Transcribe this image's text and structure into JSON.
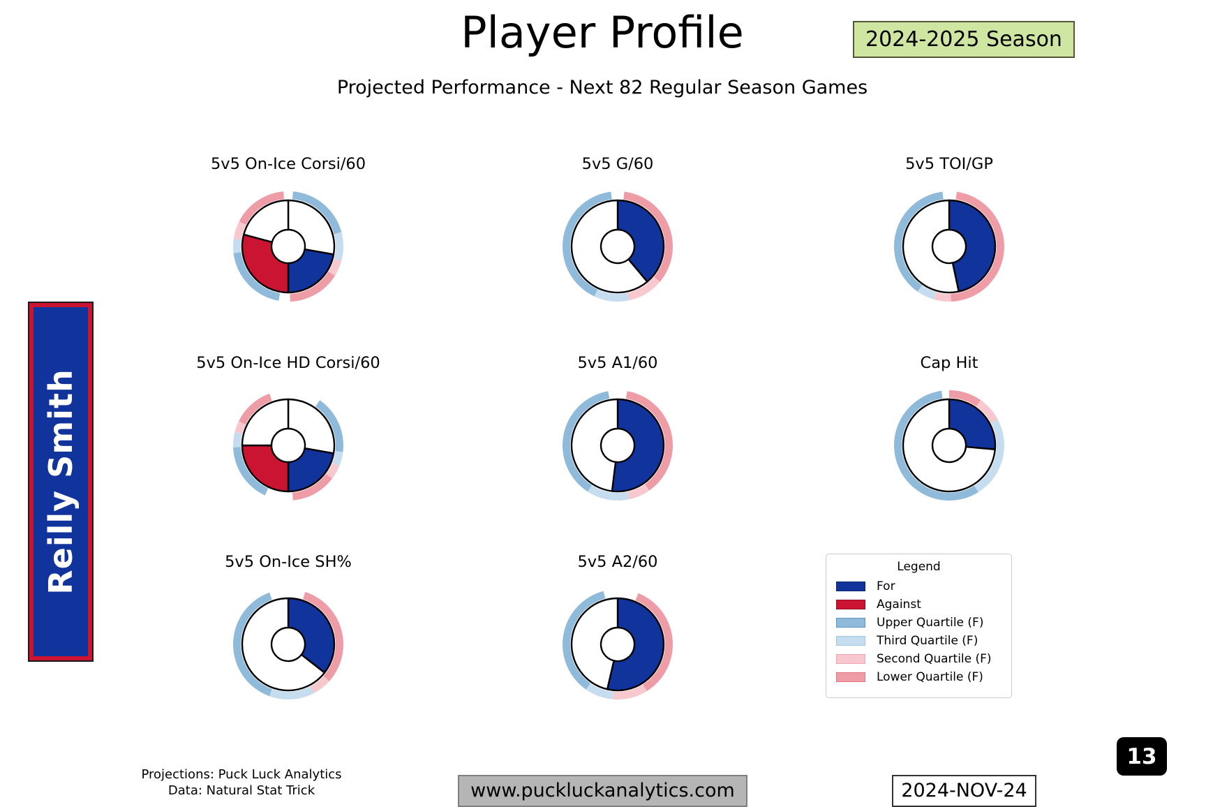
{
  "header": {
    "title": "Player Profile",
    "season_badge": "2024-2025 Season",
    "subtitle": "Projected Performance - Next 82 Regular Season Games"
  },
  "player": {
    "name": "Reilly Smith"
  },
  "colors": {
    "for": "#10339c",
    "against": "#cb1431",
    "upper_quartile": "#90bada",
    "third_quartile": "#c6ddef",
    "second_quartile": "#f7c9ce",
    "lower_quartile": "#ee9ca6",
    "swatch_border_for": "#0a2373",
    "swatch_border_against": "#8e0e23",
    "swatch_border_upper": "#5f94c4",
    "swatch_border_third": "#9ec7e4",
    "swatch_border_second": "#efa4ad",
    "swatch_border_lower": "#e2737f",
    "badge_bg": "#cfe6a3",
    "sidebar_bg": "#10339c",
    "sidebar_border": "#cb1431"
  },
  "chart_data": {
    "type": "donut-gauge-grid",
    "units": "degrees clockwise from 12 o'clock",
    "description": "Percentile gauges: inner donut filled segments (For=blue, Against=red, none=white); outer ring shows quartile bands (F)",
    "charts": [
      {
        "title": "5v5 On-Ice Corsi/60",
        "inner": [
          [
            0,
            100,
            "none"
          ],
          [
            100,
            180,
            "for"
          ],
          [
            180,
            285,
            "against"
          ],
          [
            285,
            360,
            "none"
          ]
        ],
        "outer": [
          [
            5,
            75,
            "upper_quartile"
          ],
          [
            75,
            105,
            "third_quartile"
          ],
          [
            105,
            122,
            "second_quartile"
          ],
          [
            122,
            178,
            "lower_quartile"
          ],
          [
            190,
            263,
            "upper_quartile"
          ],
          [
            263,
            278,
            "third_quartile"
          ],
          [
            278,
            297,
            "second_quartile"
          ],
          [
            297,
            355,
            "lower_quartile"
          ]
        ]
      },
      {
        "title": "5v5 G/60",
        "inner": [
          [
            0,
            140,
            "for"
          ],
          [
            140,
            360,
            "none"
          ]
        ],
        "outer": [
          [
            7,
            130,
            "lower_quartile"
          ],
          [
            130,
            168,
            "second_quartile"
          ],
          [
            168,
            205,
            "third_quartile"
          ],
          [
            205,
            353,
            "upper_quartile"
          ]
        ]
      },
      {
        "title": "5v5 TOI/GP",
        "inner": [
          [
            0,
            168,
            "for"
          ],
          [
            168,
            360,
            "none"
          ]
        ],
        "outer": [
          [
            8,
            178,
            "lower_quartile"
          ],
          [
            178,
            196,
            "second_quartile"
          ],
          [
            196,
            215,
            "third_quartile"
          ],
          [
            215,
            353,
            "upper_quartile"
          ]
        ]
      },
      {
        "title": "5v5 On-Ice HD Corsi/60",
        "inner": [
          [
            0,
            100,
            "none"
          ],
          [
            100,
            180,
            "for"
          ],
          [
            180,
            270,
            "against"
          ],
          [
            270,
            360,
            "none"
          ]
        ],
        "outer": [
          [
            35,
            97,
            "upper_quartile"
          ],
          [
            97,
            112,
            "third_quartile"
          ],
          [
            112,
            127,
            "second_quartile"
          ],
          [
            127,
            175,
            "lower_quartile"
          ],
          [
            205,
            268,
            "upper_quartile"
          ],
          [
            268,
            284,
            "third_quartile"
          ],
          [
            284,
            296,
            "second_quartile"
          ],
          [
            296,
            340,
            "lower_quartile"
          ]
        ]
      },
      {
        "title": "5v5 A1/60",
        "inner": [
          [
            0,
            187,
            "for"
          ],
          [
            187,
            360,
            "none"
          ]
        ],
        "outer": [
          [
            10,
            145,
            "lower_quartile"
          ],
          [
            145,
            168,
            "second_quartile"
          ],
          [
            168,
            213,
            "third_quartile"
          ],
          [
            213,
            350,
            "upper_quartile"
          ]
        ]
      },
      {
        "title": "Cap Hit",
        "inner": [
          [
            0,
            95,
            "for"
          ],
          [
            95,
            360,
            "none"
          ]
        ],
        "outer": [
          [
            0,
            35,
            "lower_quartile"
          ],
          [
            35,
            62,
            "second_quartile"
          ],
          [
            62,
            148,
            "third_quartile"
          ],
          [
            148,
            352,
            "upper_quartile"
          ]
        ]
      },
      {
        "title": "5v5 On-Ice SH%",
        "inner": [
          [
            0,
            128,
            "for"
          ],
          [
            128,
            360,
            "none"
          ]
        ],
        "outer": [
          [
            18,
            132,
            "lower_quartile"
          ],
          [
            132,
            152,
            "second_quartile"
          ],
          [
            152,
            200,
            "third_quartile"
          ],
          [
            200,
            340,
            "upper_quartile"
          ]
        ]
      },
      {
        "title": "5v5 A2/60",
        "inner": [
          [
            0,
            193,
            "for"
          ],
          [
            193,
            360,
            "none"
          ]
        ],
        "outer": [
          [
            22,
            148,
            "lower_quartile"
          ],
          [
            148,
            185,
            "second_quartile"
          ],
          [
            185,
            215,
            "third_quartile"
          ],
          [
            215,
            345,
            "upper_quartile"
          ]
        ]
      }
    ]
  },
  "legend": {
    "title": "Legend",
    "items": [
      {
        "label": "For",
        "color_key": "for",
        "border_key": "swatch_border_for"
      },
      {
        "label": "Against",
        "color_key": "against",
        "border_key": "swatch_border_against"
      },
      {
        "label": "Upper Quartile (F)",
        "color_key": "upper_quartile",
        "border_key": "swatch_border_upper"
      },
      {
        "label": "Third Quartile (F)",
        "color_key": "third_quartile",
        "border_key": "swatch_border_third"
      },
      {
        "label": "Second Quartile (F)",
        "color_key": "second_quartile",
        "border_key": "swatch_border_second"
      },
      {
        "label": "Lower Quartile (F)",
        "color_key": "lower_quartile",
        "border_key": "swatch_border_lower"
      }
    ]
  },
  "footer": {
    "credit_line1": "Projections: Puck Luck Analytics",
    "credit_line2": "Data: Natural Stat Trick",
    "website": "www.puckluckanalytics.com",
    "date": "2024-NOV-24",
    "page_number": "13"
  }
}
